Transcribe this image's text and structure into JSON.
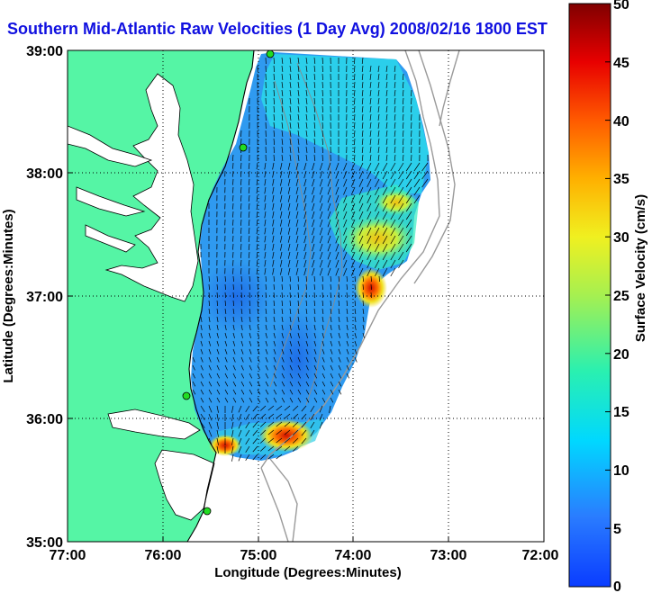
{
  "title": "Southern Mid-Atlantic Raw Velocities (1 Day Avg) 2008/02/16 1800 EST",
  "x_axis": {
    "label": "Longitude (Degrees:Minutes)",
    "ticks": [
      "77:00",
      "76:00",
      "75:00",
      "74:00",
      "73:00",
      "72:00"
    ]
  },
  "y_axis": {
    "label": "Latitude (Degrees:Minutes)",
    "ticks": [
      "39:00",
      "38:00",
      "37:00",
      "36:00",
      "35:00"
    ]
  },
  "colorbar": {
    "label": "Surface Velocity (cm/s)",
    "ticks": [
      "50",
      "45",
      "40",
      "35",
      "30",
      "25",
      "20",
      "15",
      "10",
      "5",
      "0"
    ],
    "min": 0,
    "max": 50
  },
  "colors": {
    "land": "#55f5a5",
    "title": "#1010e0",
    "coastline": "#000000",
    "bathymetry": "#9a9a9a",
    "radar_site": "#22dd22",
    "grid": "#000000"
  },
  "grid": "dotted",
  "chart_data": {
    "type": "heatmap",
    "title": "Southern Mid-Atlantic Raw Velocities (1 Day Avg) 2008/02/16 1800 EST",
    "xlabel": "Longitude (Degrees:Minutes)",
    "ylabel": "Latitude (Degrees:Minutes)",
    "xlim": [
      -77,
      -72
    ],
    "ylim": [
      35,
      39
    ],
    "colorbar_range": [
      0,
      50
    ],
    "colorbar_units": "cm/s",
    "radar_sites": [
      {
        "lon": -74.88,
        "lat": 38.98
      },
      {
        "lon": -75.15,
        "lat": 38.22
      },
      {
        "lon": -75.42,
        "lat": 36.18
      },
      {
        "lon": -75.48,
        "lat": 35.25
      }
    ],
    "hotspots": [
      {
        "lon": -73.95,
        "lat": 37.0,
        "speed": 40
      },
      {
        "lon": -74.65,
        "lat": 35.82,
        "speed": 40
      },
      {
        "lon": -75.45,
        "lat": 35.78,
        "speed": 38
      },
      {
        "lon": -73.9,
        "lat": 37.45,
        "speed": 28
      }
    ]
  }
}
